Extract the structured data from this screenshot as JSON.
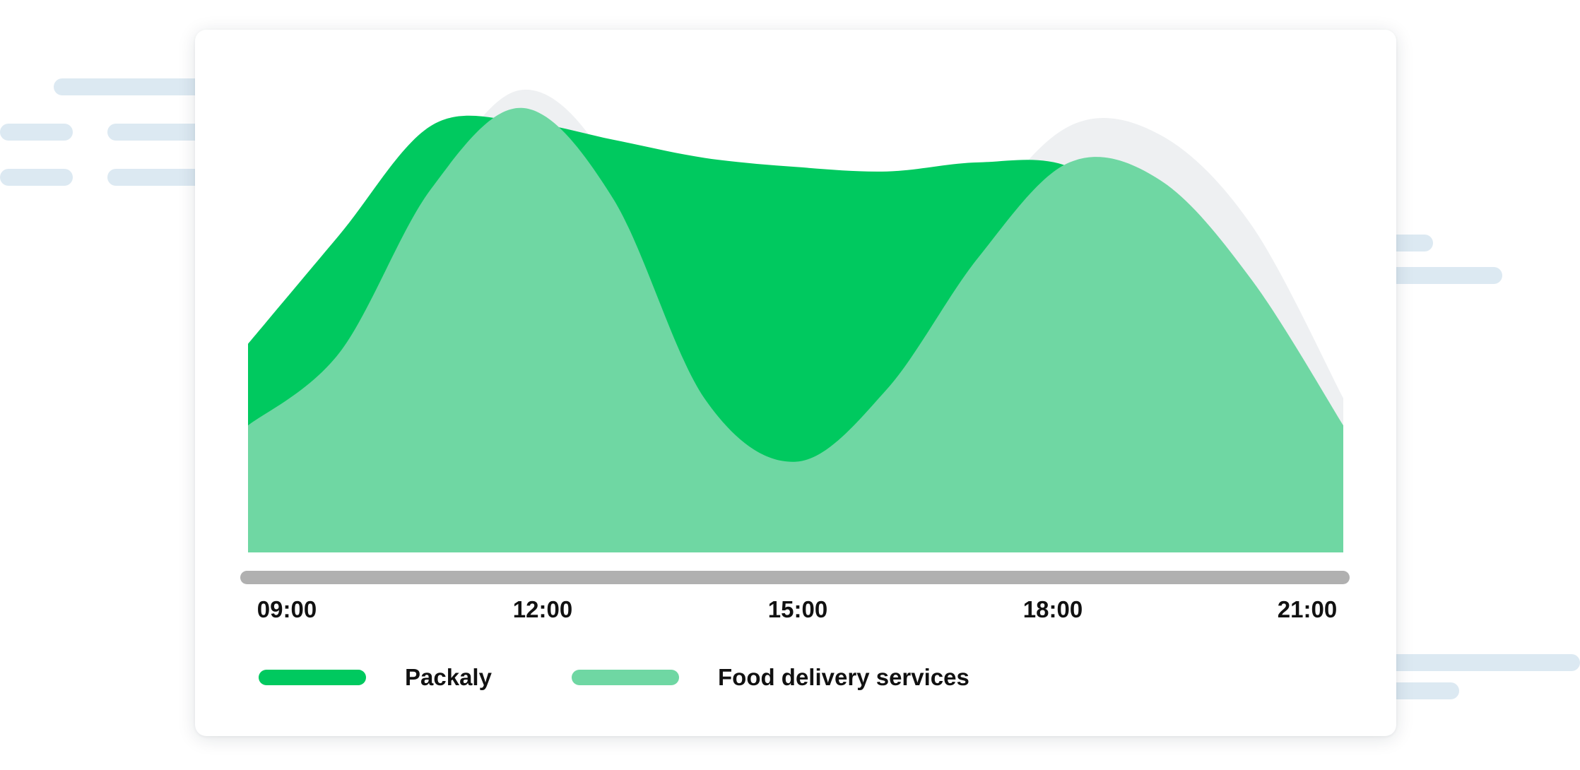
{
  "chart_data": {
    "type": "area",
    "title": "",
    "xlabel": "",
    "ylabel": "",
    "x_ticks": [
      "09:00",
      "12:00",
      "15:00",
      "18:00",
      "21:00"
    ],
    "x_hours": [
      9,
      10,
      11,
      12,
      13,
      14,
      15,
      16,
      17,
      18,
      19,
      20,
      21
    ],
    "ylim": [
      0,
      100
    ],
    "grid": false,
    "y_axis_visible": false,
    "legend_position": "bottom-left",
    "series": [
      {
        "name": "Packaly",
        "color": "#00c95f",
        "values": [
          46,
          70,
          94,
          95,
          91,
          87,
          85,
          84,
          86,
          85,
          70,
          45,
          28
        ]
      },
      {
        "name": "Food delivery services",
        "color": "#6fd7a3",
        "values": [
          28,
          44,
          80,
          98,
          78,
          34,
          20,
          36,
          65,
          86,
          82,
          60,
          28
        ]
      }
    ],
    "ghost_series": {
      "color": "#eef0f2",
      "values": [
        28,
        44,
        80,
        102,
        84,
        34,
        20,
        36,
        72,
        94,
        92,
        72,
        34
      ]
    }
  },
  "decor": {
    "line_color": "#dce9f2",
    "axis_bar_color": "#b0b0b0",
    "card_color": "#ffffff"
  }
}
